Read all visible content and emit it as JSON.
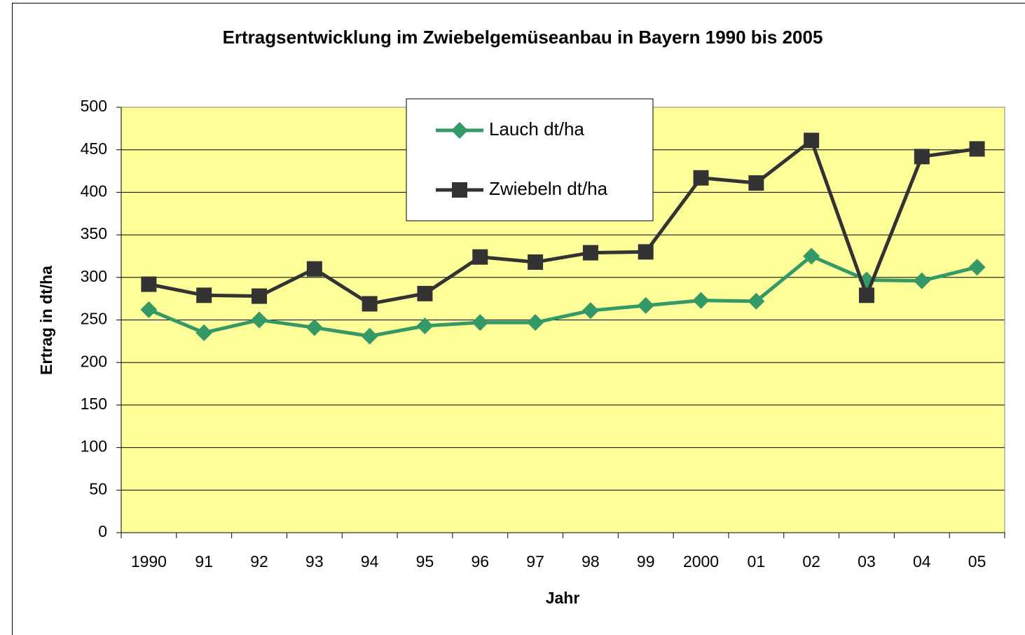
{
  "chart_data": {
    "type": "line",
    "title": "Ertragsentwicklung im Zwiebelgemüseanbau  in Bayern 1990 bis 2005",
    "x_label": "Jahr",
    "y_label": "Ertrag in dt/ha",
    "categories": [
      "1990",
      "91",
      "92",
      "93",
      "94",
      "95",
      "96",
      "97",
      "98",
      "99",
      "2000",
      "01",
      "02",
      "03",
      "04",
      "05"
    ],
    "series": [
      {
        "name": "Lauch dt/ha",
        "color": "#339966",
        "marker": "diamond",
        "values": [
          262,
          235,
          250,
          241,
          231,
          243,
          247,
          247,
          261,
          267,
          273,
          272,
          325,
          297,
          296,
          312
        ]
      },
      {
        "name": "Zwiebeln dt/ha",
        "color": "#333333",
        "marker": "square",
        "values": [
          292,
          279,
          278,
          310,
          269,
          281,
          324,
          318,
          329,
          330,
          417,
          411,
          461,
          279,
          442,
          451
        ]
      }
    ],
    "ylim": [
      0,
      500
    ],
    "yticks": [
      0,
      50,
      100,
      150,
      200,
      250,
      300,
      350,
      400,
      450,
      500
    ],
    "grid": true,
    "plot_background": "#ffff99"
  }
}
